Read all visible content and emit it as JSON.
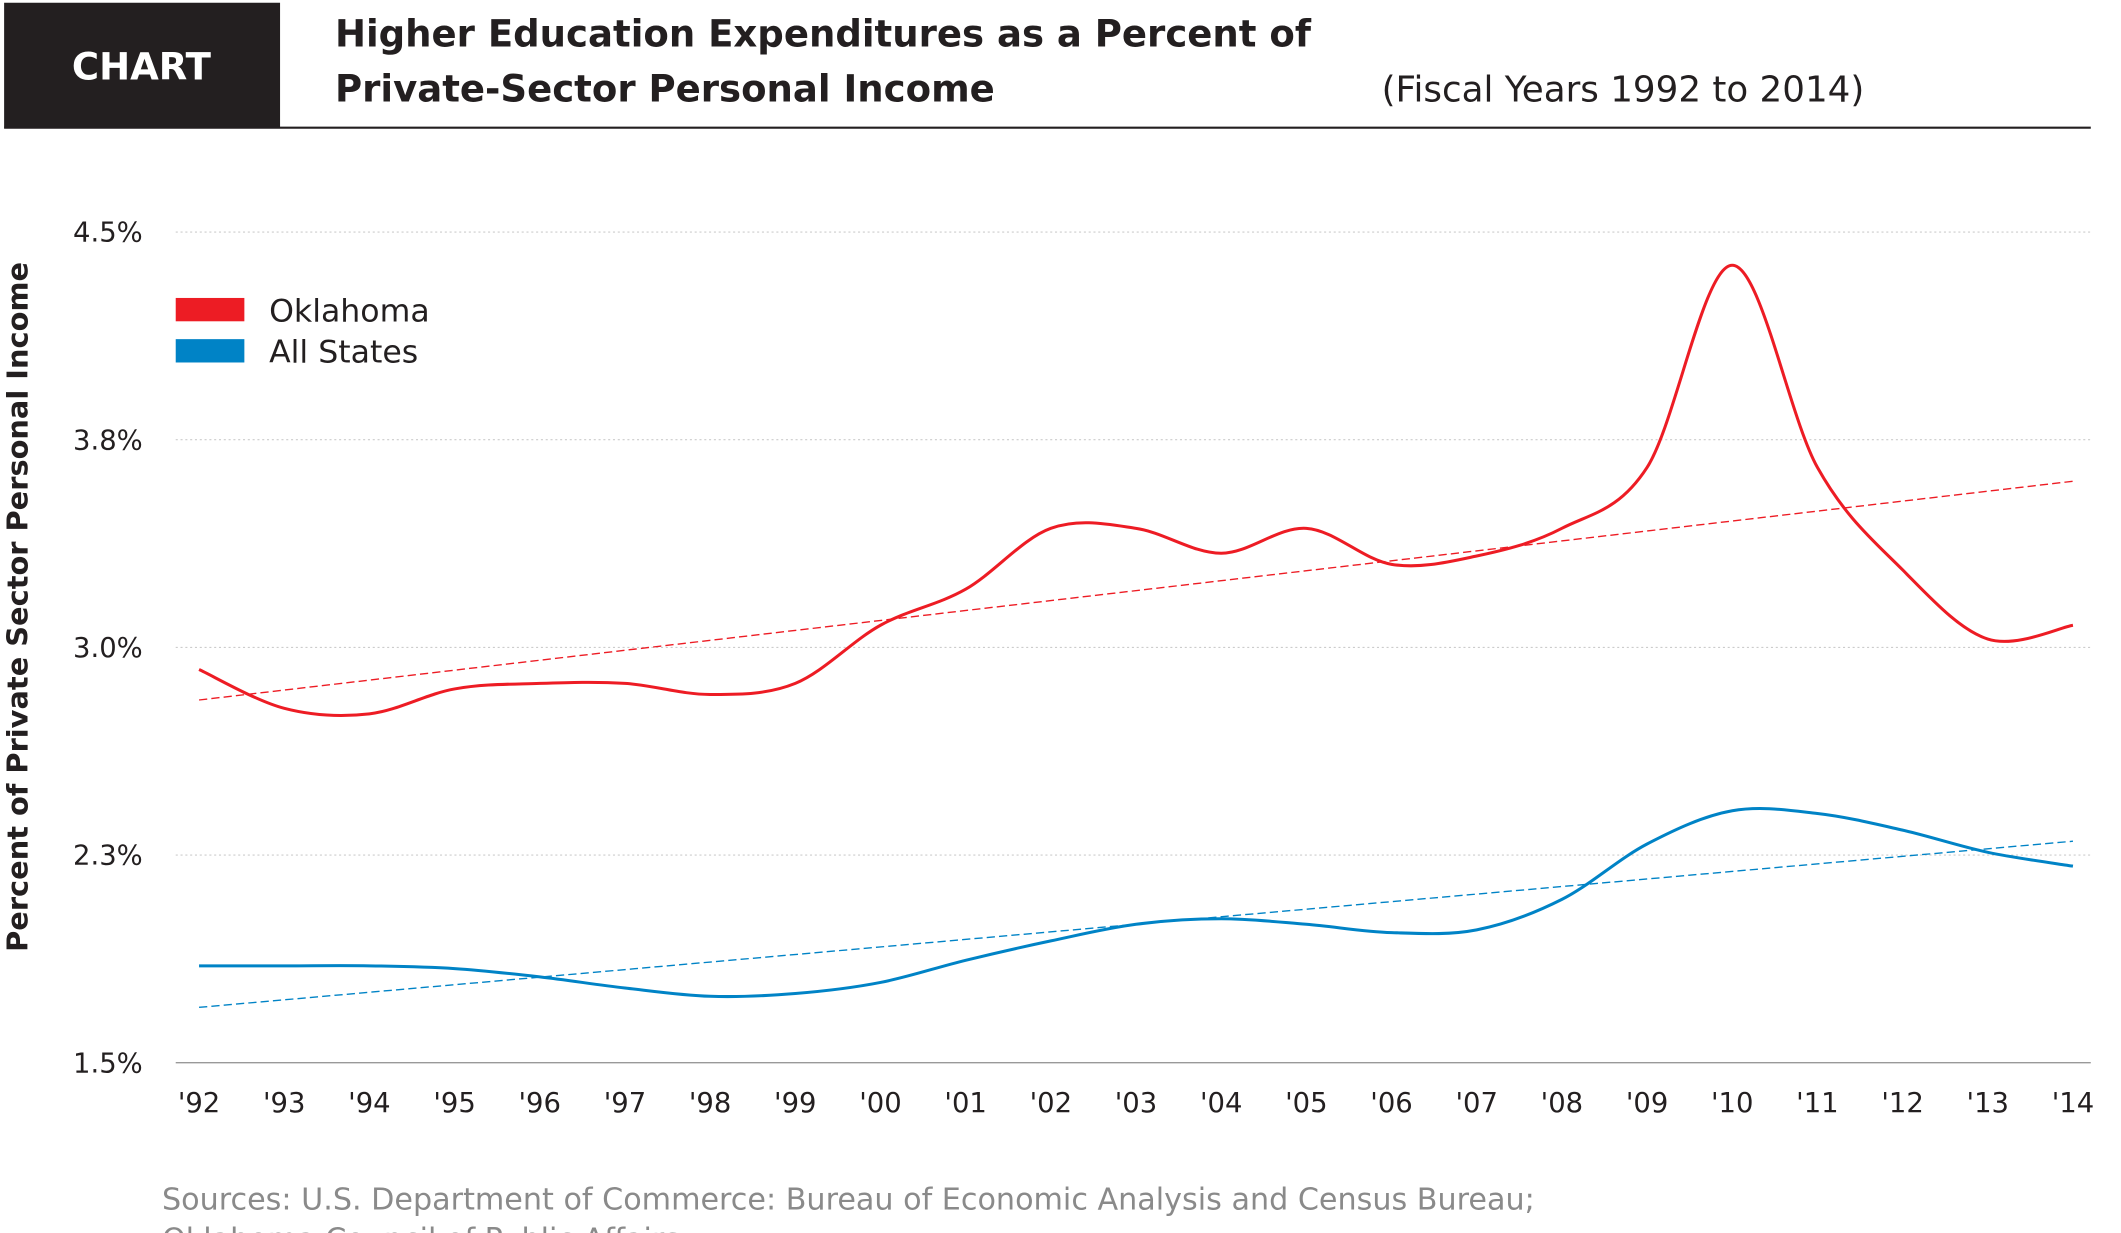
{
  "header": {
    "badge": "CHART",
    "title_line1": "Higher Education Expenditures as a Percent of",
    "title_line2": "Private-Sector Personal Income",
    "subtitle": "(Fiscal Years 1992 to 2014)"
  },
  "sources": {
    "line1": "Sources: U.S. Department of Commerce: Bureau of Economic Analysis and Census Bureau;",
    "line2": "Oklahoma Council of Public Affairs"
  },
  "colors": {
    "oklahoma": "#ed1c24",
    "all_states": "#0083c6",
    "header_bg": "#231f20",
    "source_text": "#8a8a8a"
  },
  "chart_data": {
    "type": "line",
    "ylabel": "Percent of Private Sector Personal Income",
    "ylim": [
      1.5,
      4.5
    ],
    "yticks": [
      1.5,
      2.25,
      3.0,
      3.75,
      4.5
    ],
    "ytick_labels": [
      "1.5%",
      "2.3%",
      "3.0%",
      "3.8%",
      "4.5%"
    ],
    "grid": true,
    "legend_position": "top-left",
    "categories": [
      "'92",
      "'93",
      "'94",
      "'95",
      "'96",
      "'97",
      "'98",
      "'99",
      "'00",
      "'01",
      "'02",
      "'03",
      "'04",
      "'05",
      "'06",
      "'07",
      "'08",
      "'09",
      "'10",
      "'11",
      "'12",
      "'13",
      "'14"
    ],
    "series": [
      {
        "name": "Oklahoma",
        "color": "#ed1c24",
        "values": [
          2.92,
          2.78,
          2.76,
          2.85,
          2.87,
          2.87,
          2.83,
          2.87,
          3.08,
          3.21,
          3.43,
          3.43,
          3.34,
          3.43,
          3.3,
          3.33,
          3.43,
          3.65,
          4.38,
          3.65,
          3.28,
          3.03,
          3.08
        ],
        "trendline": [
          2.81,
          3.6
        ]
      },
      {
        "name": "All States",
        "color": "#0083c6",
        "values": [
          1.85,
          1.85,
          1.85,
          1.84,
          1.81,
          1.77,
          1.74,
          1.75,
          1.79,
          1.87,
          1.94,
          2.0,
          2.02,
          2.0,
          1.97,
          1.98,
          2.09,
          2.29,
          2.41,
          2.4,
          2.34,
          2.26,
          2.21
        ],
        "trendline": [
          1.7,
          2.3
        ]
      }
    ]
  }
}
